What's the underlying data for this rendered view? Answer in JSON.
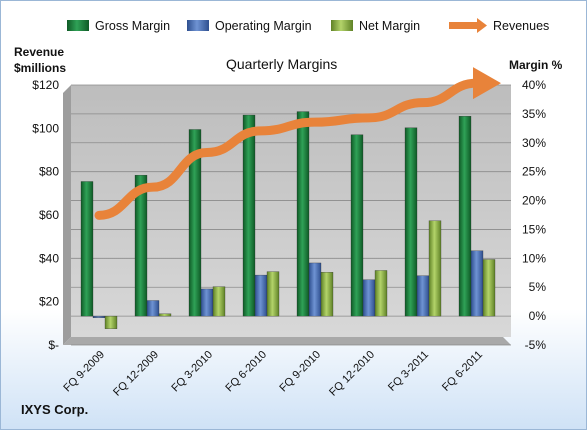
{
  "chart_data": {
    "type": "bar",
    "title": "Quarterly Margins",
    "company": "IXYS Corp.",
    "left_axis_label": [
      "Revenue",
      "$millions"
    ],
    "right_axis_label": "Margin %",
    "left_ticks": [
      "$120",
      "$100",
      "$80",
      "$60",
      "$40",
      "$20",
      "$-"
    ],
    "right_ticks": [
      "40%",
      "35%",
      "30%",
      "25%",
      "20%",
      "15%",
      "10%",
      "5%",
      "0%",
      "-5%"
    ],
    "ylim_right": [
      -5,
      40
    ],
    "ylim_left": [
      0,
      120
    ],
    "grid": true,
    "legend_position": "top",
    "categories": [
      "FQ 9-2009",
      "FQ 12-2009",
      "FQ 3-2010",
      "FQ 6-2010",
      "FQ 9-2010",
      "FQ 12-2010",
      "FQ 3-2011",
      "FQ 6-2011"
    ],
    "series": [
      {
        "name": "Gross Margin",
        "axis": "right",
        "color": "#1f7a3a",
        "values": [
          23.3,
          24.4,
          32.3,
          34.8,
          35.4,
          31.4,
          32.6,
          34.6
        ]
      },
      {
        "name": "Operating Margin",
        "axis": "right",
        "color": "#4a6fb5",
        "values": [
          -0.3,
          2.7,
          4.7,
          7.1,
          9.2,
          6.3,
          7.0,
          11.3
        ]
      },
      {
        "name": "Net Margin",
        "axis": "right",
        "color": "#8fb24a",
        "values": [
          -2.2,
          0.4,
          5.1,
          7.7,
          7.6,
          7.9,
          16.5,
          9.8
        ]
      },
      {
        "name": "Revenues",
        "axis": "left",
        "type": "line",
        "color": "#e8833a",
        "values": [
          52,
          65,
          81,
          91,
          95,
          97,
          104,
          113
        ]
      }
    ]
  }
}
